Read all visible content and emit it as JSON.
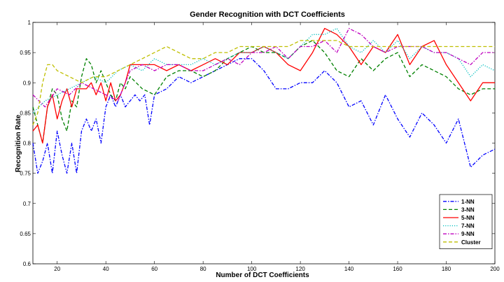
{
  "chart_data": {
    "type": "line",
    "title": "Gender Recognition with DCT Coefficients",
    "xlabel": "Number of DCT Coefficients",
    "ylabel": "Recognition Rate",
    "xlim": [
      10,
      200
    ],
    "ylim": [
      0.6,
      1.0
    ],
    "xticks": [
      20,
      40,
      60,
      80,
      100,
      120,
      140,
      160,
      180,
      200
    ],
    "yticks": [
      0.6,
      0.65,
      0.7,
      0.75,
      0.8,
      0.85,
      0.9,
      0.95,
      1
    ],
    "grid": false,
    "legend_position": "bottom-right",
    "series": [
      {
        "name": "1-NN",
        "color": "#0000ff",
        "dash": "dash-dot",
        "x": [
          10,
          12,
          14,
          16,
          18,
          20,
          22,
          24,
          26,
          28,
          30,
          32,
          34,
          36,
          38,
          40,
          42,
          44,
          46,
          48,
          50,
          52,
          54,
          56,
          58,
          60,
          65,
          70,
          75,
          80,
          85,
          90,
          95,
          100,
          105,
          110,
          115,
          120,
          125,
          130,
          135,
          140,
          145,
          150,
          155,
          160,
          165,
          170,
          175,
          180,
          185,
          190,
          195,
          200
        ],
        "y": [
          0.8,
          0.75,
          0.77,
          0.8,
          0.75,
          0.82,
          0.78,
          0.75,
          0.8,
          0.75,
          0.82,
          0.84,
          0.82,
          0.84,
          0.8,
          0.86,
          0.88,
          0.86,
          0.88,
          0.86,
          0.87,
          0.88,
          0.87,
          0.88,
          0.83,
          0.88,
          0.89,
          0.91,
          0.9,
          0.91,
          0.92,
          0.93,
          0.94,
          0.94,
          0.92,
          0.89,
          0.89,
          0.9,
          0.9,
          0.92,
          0.9,
          0.86,
          0.87,
          0.83,
          0.88,
          0.84,
          0.81,
          0.85,
          0.83,
          0.8,
          0.84,
          0.76,
          0.78,
          0.79
        ]
      },
      {
        "name": "3-NN",
        "color": "#008000",
        "dash": "dashed",
        "x": [
          10,
          12,
          14,
          16,
          18,
          20,
          22,
          24,
          26,
          28,
          30,
          32,
          34,
          36,
          38,
          40,
          42,
          44,
          46,
          48,
          50,
          55,
          60,
          65,
          70,
          75,
          80,
          85,
          90,
          95,
          100,
          105,
          110,
          115,
          120,
          125,
          130,
          135,
          140,
          145,
          150,
          155,
          160,
          165,
          170,
          175,
          180,
          185,
          190,
          195,
          200
        ],
        "y": [
          0.86,
          0.83,
          0.8,
          0.86,
          0.89,
          0.88,
          0.84,
          0.82,
          0.87,
          0.86,
          0.91,
          0.94,
          0.93,
          0.9,
          0.92,
          0.9,
          0.88,
          0.87,
          0.9,
          0.89,
          0.91,
          0.89,
          0.88,
          0.91,
          0.92,
          0.92,
          0.91,
          0.92,
          0.94,
          0.95,
          0.96,
          0.95,
          0.95,
          0.94,
          0.96,
          0.97,
          0.95,
          0.92,
          0.91,
          0.94,
          0.92,
          0.94,
          0.95,
          0.91,
          0.93,
          0.92,
          0.91,
          0.89,
          0.88,
          0.89,
          0.89
        ]
      },
      {
        "name": "5-NN",
        "color": "#ff0000",
        "dash": "solid",
        "x": [
          10,
          12,
          14,
          16,
          18,
          20,
          22,
          24,
          26,
          28,
          30,
          32,
          34,
          36,
          38,
          40,
          42,
          44,
          46,
          48,
          50,
          55,
          60,
          65,
          70,
          75,
          80,
          85,
          90,
          95,
          100,
          105,
          110,
          115,
          120,
          125,
          130,
          135,
          140,
          145,
          150,
          155,
          160,
          165,
          170,
          175,
          180,
          185,
          190,
          195,
          200
        ],
        "y": [
          0.82,
          0.83,
          0.8,
          0.86,
          0.88,
          0.84,
          0.87,
          0.89,
          0.86,
          0.89,
          0.89,
          0.89,
          0.9,
          0.88,
          0.9,
          0.87,
          0.9,
          0.87,
          0.88,
          0.9,
          0.93,
          0.93,
          0.93,
          0.92,
          0.93,
          0.92,
          0.93,
          0.94,
          0.93,
          0.95,
          0.95,
          0.96,
          0.95,
          0.93,
          0.92,
          0.95,
          0.99,
          0.98,
          0.96,
          0.93,
          0.96,
          0.95,
          0.98,
          0.93,
          0.96,
          0.97,
          0.93,
          0.9,
          0.87,
          0.9,
          0.9
        ]
      },
      {
        "name": "7-NN",
        "color": "#00bfbf",
        "dash": "dotted",
        "x": [
          10,
          15,
          20,
          25,
          30,
          35,
          40,
          45,
          50,
          55,
          60,
          65,
          70,
          75,
          80,
          85,
          90,
          95,
          100,
          105,
          110,
          115,
          120,
          125,
          130,
          135,
          140,
          145,
          150,
          155,
          160,
          165,
          170,
          175,
          180,
          185,
          190,
          195,
          200
        ],
        "y": [
          0.85,
          0.87,
          0.88,
          0.89,
          0.9,
          0.91,
          0.9,
          0.92,
          0.93,
          0.92,
          0.94,
          0.93,
          0.93,
          0.93,
          0.94,
          0.93,
          0.94,
          0.95,
          0.95,
          0.96,
          0.95,
          0.94,
          0.96,
          0.98,
          0.98,
          0.99,
          0.96,
          0.95,
          0.97,
          0.95,
          0.97,
          0.94,
          0.96,
          0.95,
          0.95,
          0.94,
          0.91,
          0.93,
          0.92
        ]
      },
      {
        "name": "9-NN",
        "color": "#bf00bf",
        "dash": "dash-dot",
        "x": [
          10,
          15,
          20,
          25,
          30,
          35,
          40,
          45,
          50,
          55,
          60,
          65,
          70,
          75,
          80,
          85,
          90,
          95,
          100,
          105,
          110,
          115,
          120,
          125,
          130,
          135,
          140,
          145,
          150,
          155,
          160,
          165,
          170,
          175,
          180,
          185,
          190,
          195,
          200
        ],
        "y": [
          0.88,
          0.86,
          0.89,
          0.88,
          0.9,
          0.89,
          0.88,
          0.87,
          0.92,
          0.93,
          0.92,
          0.93,
          0.93,
          0.92,
          0.92,
          0.93,
          0.94,
          0.93,
          0.95,
          0.95,
          0.96,
          0.94,
          0.96,
          0.96,
          0.97,
          0.95,
          0.99,
          0.98,
          0.96,
          0.95,
          0.96,
          0.96,
          0.96,
          0.95,
          0.95,
          0.94,
          0.93,
          0.95,
          0.95
        ]
      },
      {
        "name": "Cluster",
        "color": "#bfbf00",
        "dash": "dashed",
        "x": [
          10,
          12,
          14,
          16,
          18,
          20,
          25,
          30,
          35,
          40,
          45,
          50,
          55,
          60,
          65,
          70,
          75,
          80,
          85,
          90,
          95,
          100,
          105,
          110,
          115,
          120,
          125,
          130,
          135,
          140,
          145,
          150,
          155,
          160,
          165,
          170,
          175,
          180,
          185,
          190,
          195,
          200
        ],
        "y": [
          0.83,
          0.85,
          0.9,
          0.93,
          0.93,
          0.92,
          0.91,
          0.9,
          0.91,
          0.91,
          0.92,
          0.93,
          0.94,
          0.95,
          0.96,
          0.95,
          0.94,
          0.94,
          0.95,
          0.95,
          0.96,
          0.96,
          0.96,
          0.96,
          0.96,
          0.97,
          0.97,
          0.97,
          0.97,
          0.96,
          0.96,
          0.96,
          0.96,
          0.96,
          0.96,
          0.96,
          0.96,
          0.96,
          0.96,
          0.96,
          0.96,
          0.96
        ]
      }
    ]
  }
}
